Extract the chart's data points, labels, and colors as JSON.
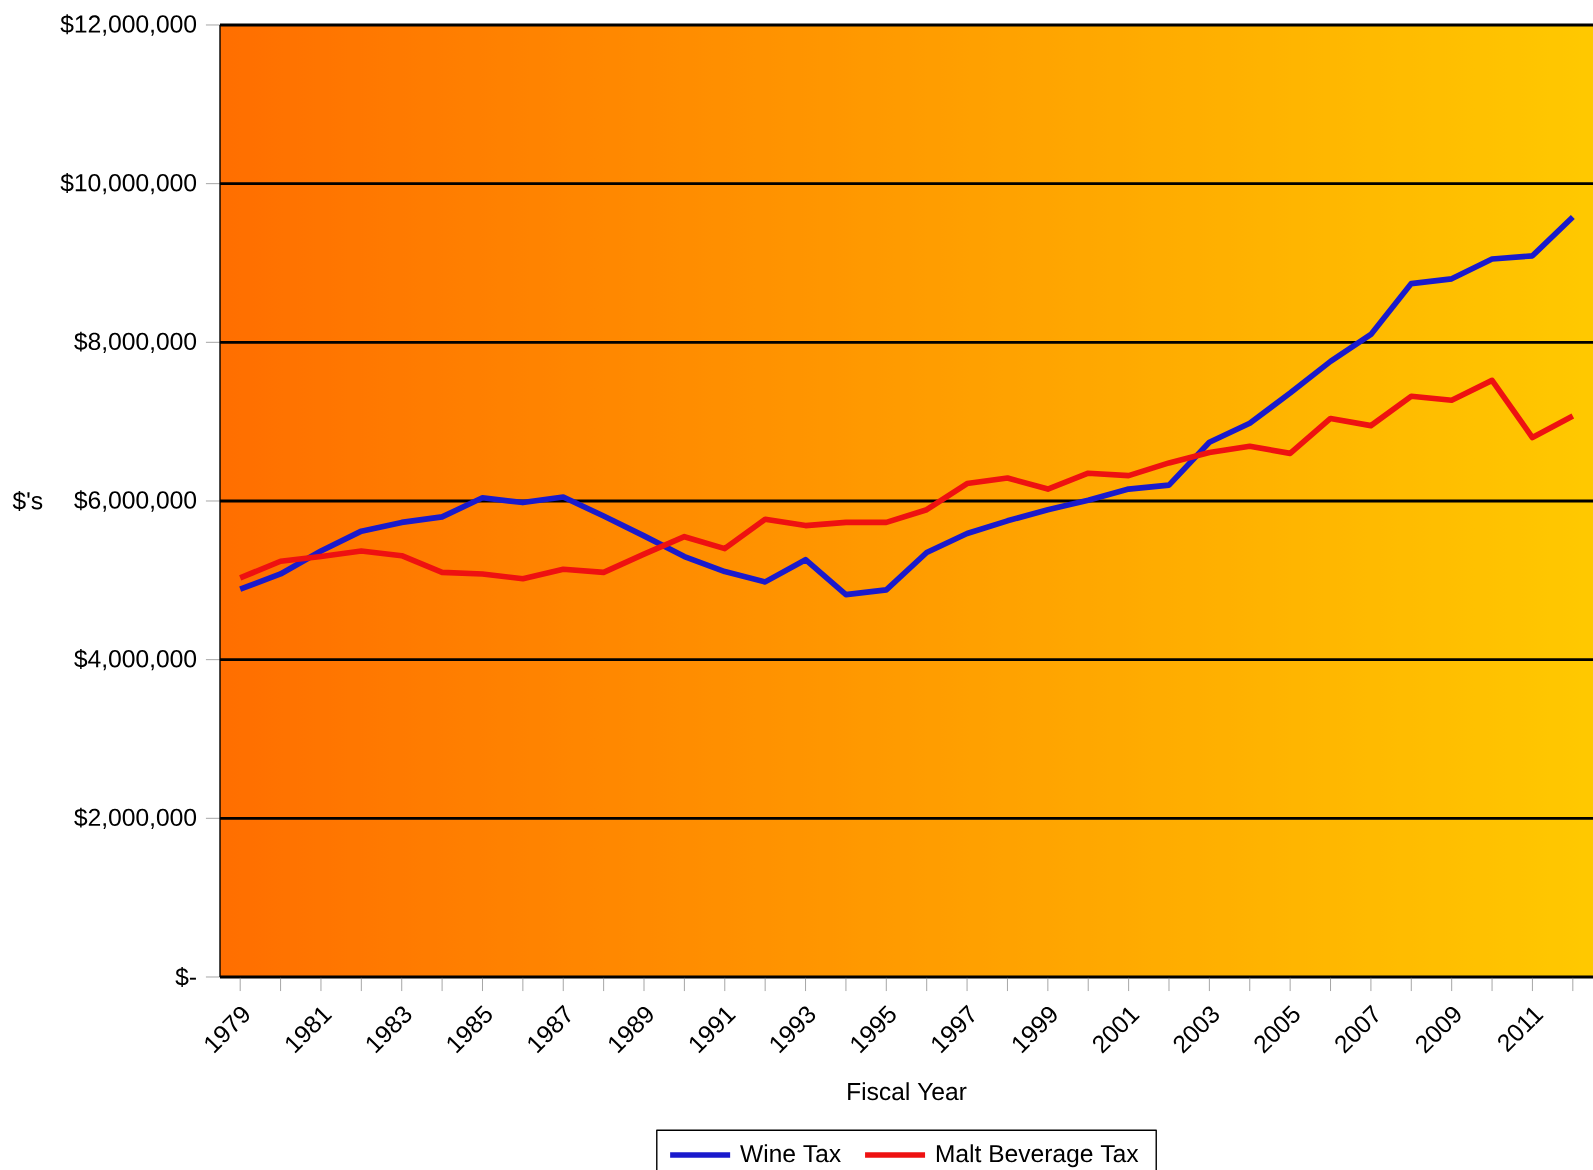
{
  "chart_data": {
    "type": "line",
    "xlabel": "Fiscal Year",
    "ylabel": "$'s",
    "categories": [
      "1979",
      null,
      "1981",
      null,
      "1983",
      null,
      "1985",
      null,
      "1987",
      null,
      "1989",
      null,
      "1991",
      null,
      "1993",
      null,
      "1995",
      null,
      "1997",
      null,
      "1999",
      null,
      "2001",
      null,
      "2003",
      null,
      "2005",
      null,
      "2007",
      null,
      "2009",
      null,
      "2011",
      null
    ],
    "series": [
      {
        "name": "Wine Tax",
        "color": "#1a1acc",
        "values": [
          4890000,
          5080000,
          5370000,
          5620000,
          5730000,
          5800000,
          6040000,
          5980000,
          6050000,
          5810000,
          5560000,
          5300000,
          5110000,
          4980000,
          5260000,
          4820000,
          4880000,
          5350000,
          5590000,
          5750000,
          5890000,
          6010000,
          6150000,
          6200000,
          6740000,
          6980000,
          7360000,
          7760000,
          8100000,
          8740000,
          8800000,
          9050000,
          9090000,
          9580000
        ]
      },
      {
        "name": "Malt Beverage Tax",
        "color": "#ee1111",
        "values": [
          5030000,
          5240000,
          5300000,
          5370000,
          5310000,
          5100000,
          5080000,
          5020000,
          5140000,
          5100000,
          5330000,
          5550000,
          5400000,
          5770000,
          5690000,
          5730000,
          5730000,
          5890000,
          6220000,
          6290000,
          6150000,
          6350000,
          6320000,
          6480000,
          6610000,
          6690000,
          6600000,
          7040000,
          6950000,
          7320000,
          7270000,
          7520000,
          6800000,
          7070000
        ]
      }
    ],
    "ylim": [
      0,
      12000000
    ],
    "yticks": [
      {
        "value": 0,
        "label": "$-"
      },
      {
        "value": 2000000,
        "label": "$2,000,000"
      },
      {
        "value": 4000000,
        "label": "$4,000,000"
      },
      {
        "value": 6000000,
        "label": "$6,000,000"
      },
      {
        "value": 8000000,
        "label": "$8,000,000"
      },
      {
        "value": 10000000,
        "label": "$10,000,000"
      },
      {
        "value": 12000000,
        "label": "$12,000,000"
      }
    ],
    "grid": "y",
    "legend": "bottom",
    "marker": "none",
    "line_style": "solid"
  }
}
